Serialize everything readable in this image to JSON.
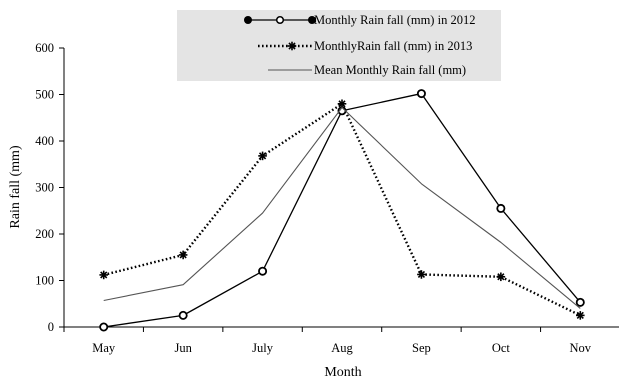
{
  "chart_data": {
    "type": "line",
    "categories": [
      "May",
      "Jun",
      "July",
      "Aug",
      "Sep",
      "Oct",
      "Nov"
    ],
    "xlabel": "Month",
    "ylabel": "Rain fall  (mm)",
    "ylim": [
      0,
      600
    ],
    "yticks": [
      0,
      100,
      200,
      300,
      400,
      500,
      600
    ],
    "grid": false,
    "legend_position": "top",
    "series": [
      {
        "name": "Monthly Rain fall (mm)  in 2012",
        "values": [
          0,
          25,
          120,
          465,
          502,
          255,
          53
        ],
        "style": "solid-markers",
        "color": "#000000"
      },
      {
        "name": "MonthlyRain fall (mm) in 2013",
        "values": [
          112,
          155,
          368,
          480,
          113,
          108,
          25
        ],
        "style": "dotted-starmarkers",
        "color": "#000000"
      },
      {
        "name": "Mean Monthly Rain fall (mm)",
        "values": [
          57,
          91,
          245,
          472,
          308,
          182,
          40
        ],
        "style": "thin-solid",
        "color": "#555555"
      }
    ]
  }
}
